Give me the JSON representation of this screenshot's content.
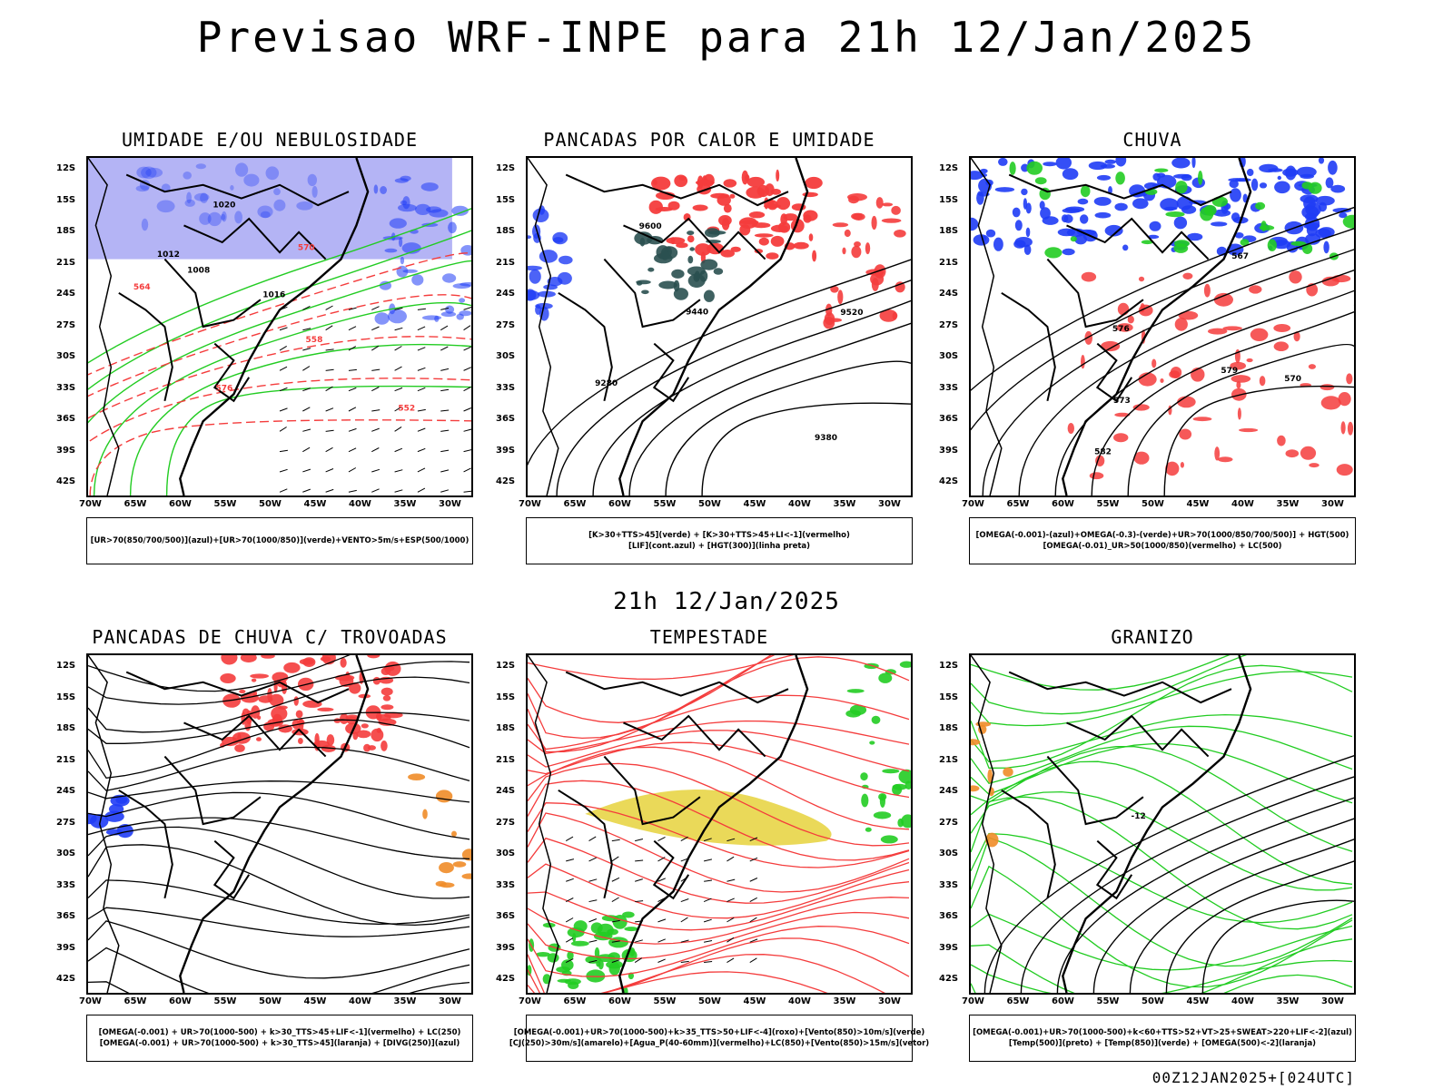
{
  "title": "Previsao WRF-INPE  para 21h 12/Jan/2025",
  "mid_time": "21h 12/Jan/2025",
  "footer": "00Z12JAN2025+[024UTC]",
  "lat_labels": [
    "12S",
    "15S",
    "18S",
    "21S",
    "24S",
    "27S",
    "30S",
    "33S",
    "36S",
    "39S",
    "42S"
  ],
  "lon_labels": [
    "70W",
    "65W",
    "60W",
    "55W",
    "50W",
    "45W",
    "40W",
    "35W",
    "30W"
  ],
  "colors": {
    "blue": "#1f3cf5",
    "lightblue": "#b4b4f5",
    "green": "#22cc22",
    "red": "#f43c3c",
    "darkteal": "#2a5050",
    "yellow": "#e6d23c",
    "orange": "#f08c28"
  },
  "panels": [
    {
      "title": "UMIDADE E/OU NEBULOSIDADE",
      "legend": [
        "[UR>70(850/700/500)](azul)+[UR>70(1000/850)](verde)+VENTO>5m/s+ESP(500/1000)"
      ],
      "contour_labels": [
        "1008",
        "1012",
        "1016",
        "1020",
        "576",
        "570",
        "564",
        "558",
        "552"
      ]
    },
    {
      "title": "PANCADAS POR CALOR E UMIDADE",
      "legend": [
        "[K>30+TTS>45](verde) + [K>30+TTS>45+LI<-1](vermelho)",
        "[LIF](cont.azul) + [HGT(300)](linha preta)"
      ],
      "contour_labels": [
        "9600",
        "9520",
        "9440",
        "9380",
        "9280"
      ]
    },
    {
      "title": "CHUVA",
      "legend": [
        "[OMEGA(-0.001)-(azul)+OMEGA(-0.3)-(verde)+UR>70(1000/850/700/500)] + HGT(500)",
        "[OMEGA(-0.01)_UR>50(1000/850)(vermelho) + LC(500)"
      ],
      "contour_labels": [
        "582",
        "579",
        "576",
        "573",
        "570",
        "567"
      ]
    },
    {
      "title": "PANCADAS DE CHUVA C/ TROVOADAS",
      "legend": [
        "[OMEGA(-0.001) + UR>70(1000-500) + k>30_TTS>45+LIF<-1](vermelho) + LC(250)",
        "[OMEGA(-0.001) + UR>70(1000-500) + k>30_TTS>45](laranja) + [DIVG(250)](azul)"
      ],
      "contour_labels": []
    },
    {
      "title": "TEMPESTADE",
      "legend": [
        "[OMEGA(-0.001)+UR>70(1000-500)+k>35_TTS>50+LIF<-4](roxo)+[Vento(850)>10m/s](verde)",
        "[CJ(250)>30m/s](amarelo)+[Agua_P(40-60mm)](vermelho)+LC(850)+[Vento(850)>15m/s](vetor)"
      ],
      "contour_labels": []
    },
    {
      "title": "GRANIZO",
      "legend": [
        "[OMEGA(-0.001)+UR>70(1000-500)+k<60+TTS>52+VT>25+SWEAT>220+LIF<-2](azul)",
        "[Temp(500)](preto) + [Temp(850)](verde) + [OMEGA(500)<-2](laranja)"
      ],
      "contour_labels": [
        "-12"
      ]
    }
  ]
}
